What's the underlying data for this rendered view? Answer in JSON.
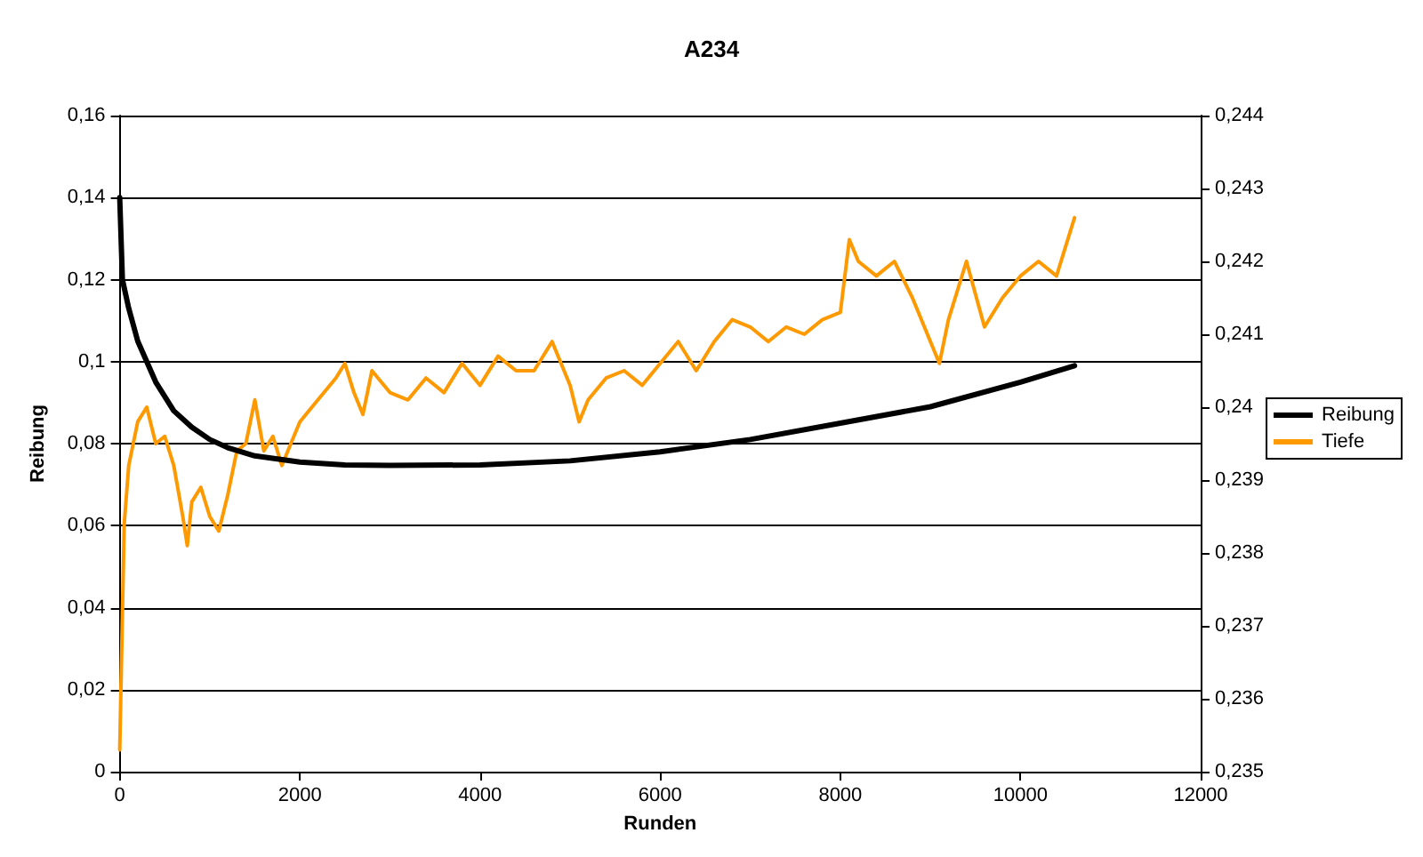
{
  "chart_data": {
    "type": "line",
    "title": "A234",
    "xlabel": "Runden",
    "ylabel": "Reibung",
    "xlim": [
      0,
      12000
    ],
    "xticks": [
      0,
      2000,
      4000,
      6000,
      8000,
      10000,
      12000
    ],
    "ylim": [
      0,
      0.16
    ],
    "yticks": [
      {
        "value": 0,
        "label": "0"
      },
      {
        "value": 0.02,
        "label": "0,02"
      },
      {
        "value": 0.04,
        "label": "0,04"
      },
      {
        "value": 0.06,
        "label": "0,06"
      },
      {
        "value": 0.08,
        "label": "0,08"
      },
      {
        "value": 0.1,
        "label": "0,1"
      },
      {
        "value": 0.12,
        "label": "0,12"
      },
      {
        "value": 0.14,
        "label": "0,14"
      },
      {
        "value": 0.16,
        "label": "0,16"
      }
    ],
    "y2lim": [
      0.235,
      0.244
    ],
    "y2ticks": [
      {
        "value": 0.235,
        "label": "0,235"
      },
      {
        "value": 0.236,
        "label": "0,236"
      },
      {
        "value": 0.237,
        "label": "0,237"
      },
      {
        "value": 0.238,
        "label": "0,238"
      },
      {
        "value": 0.239,
        "label": "0,239"
      },
      {
        "value": 0.24,
        "label": "0,24"
      },
      {
        "value": 0.241,
        "label": "0,241"
      },
      {
        "value": 0.242,
        "label": "0,242"
      },
      {
        "value": 0.243,
        "label": "0,243"
      },
      {
        "value": 0.244,
        "label": "0,244"
      }
    ],
    "grid": "y",
    "legend": "right",
    "marker": "none",
    "series": [
      {
        "name": "Reibung",
        "color": "#000000",
        "x": [
          0,
          30,
          100,
          200,
          400,
          600,
          800,
          1000,
          1200,
          1500,
          2000,
          2500,
          3000,
          4000,
          5000,
          6000,
          7000,
          8000,
          9000,
          10000,
          10600
        ],
        "values": [
          0.14,
          0.12,
          0.113,
          0.105,
          0.095,
          0.088,
          0.084,
          0.081,
          0.079,
          0.077,
          0.0755,
          0.0748,
          0.0747,
          0.0748,
          0.0758,
          0.078,
          0.081,
          0.085,
          0.089,
          0.095,
          0.099
        ]
      },
      {
        "name": "Tiefe",
        "color": "#ff9900",
        "axis": "y2",
        "x": [
          0,
          50,
          100,
          200,
          300,
          400,
          500,
          600,
          700,
          750,
          800,
          900,
          1000,
          1100,
          1200,
          1300,
          1400,
          1500,
          1600,
          1700,
          1800,
          1900,
          2000,
          2200,
          2400,
          2500,
          2600,
          2700,
          2800,
          3000,
          3200,
          3400,
          3600,
          3800,
          4000,
          4200,
          4400,
          4600,
          4800,
          5000,
          5100,
          5200,
          5400,
          5600,
          5800,
          6000,
          6200,
          6400,
          6600,
          6800,
          7000,
          7200,
          7400,
          7600,
          7800,
          8000,
          8100,
          8200,
          8400,
          8600,
          8800,
          9000,
          9100,
          9200,
          9400,
          9600,
          9800,
          10000,
          10200,
          10400,
          10600
        ],
        "values": [
          0.2353,
          0.2384,
          0.2392,
          0.2398,
          0.24,
          0.2395,
          0.2396,
          0.2392,
          0.2385,
          0.2381,
          0.2387,
          0.2389,
          0.2385,
          0.2383,
          0.2388,
          0.2394,
          0.2395,
          0.2401,
          0.2394,
          0.2396,
          0.2392,
          0.2395,
          0.2398,
          0.2401,
          0.2404,
          0.2406,
          0.2402,
          0.2399,
          0.2405,
          0.2402,
          0.2401,
          0.2404,
          0.2402,
          0.2406,
          0.2403,
          0.2407,
          0.2405,
          0.2405,
          0.2409,
          0.2403,
          0.2398,
          0.2401,
          0.2404,
          0.2405,
          0.2403,
          0.2406,
          0.2409,
          0.2405,
          0.2409,
          0.2412,
          0.2411,
          0.2409,
          0.2411,
          0.241,
          0.2412,
          0.2413,
          0.2423,
          0.242,
          0.2418,
          0.242,
          0.2415,
          0.2409,
          0.2406,
          0.2412,
          0.242,
          0.2411,
          0.2415,
          0.2418,
          0.242,
          0.2418,
          0.2426
        ]
      }
    ]
  }
}
